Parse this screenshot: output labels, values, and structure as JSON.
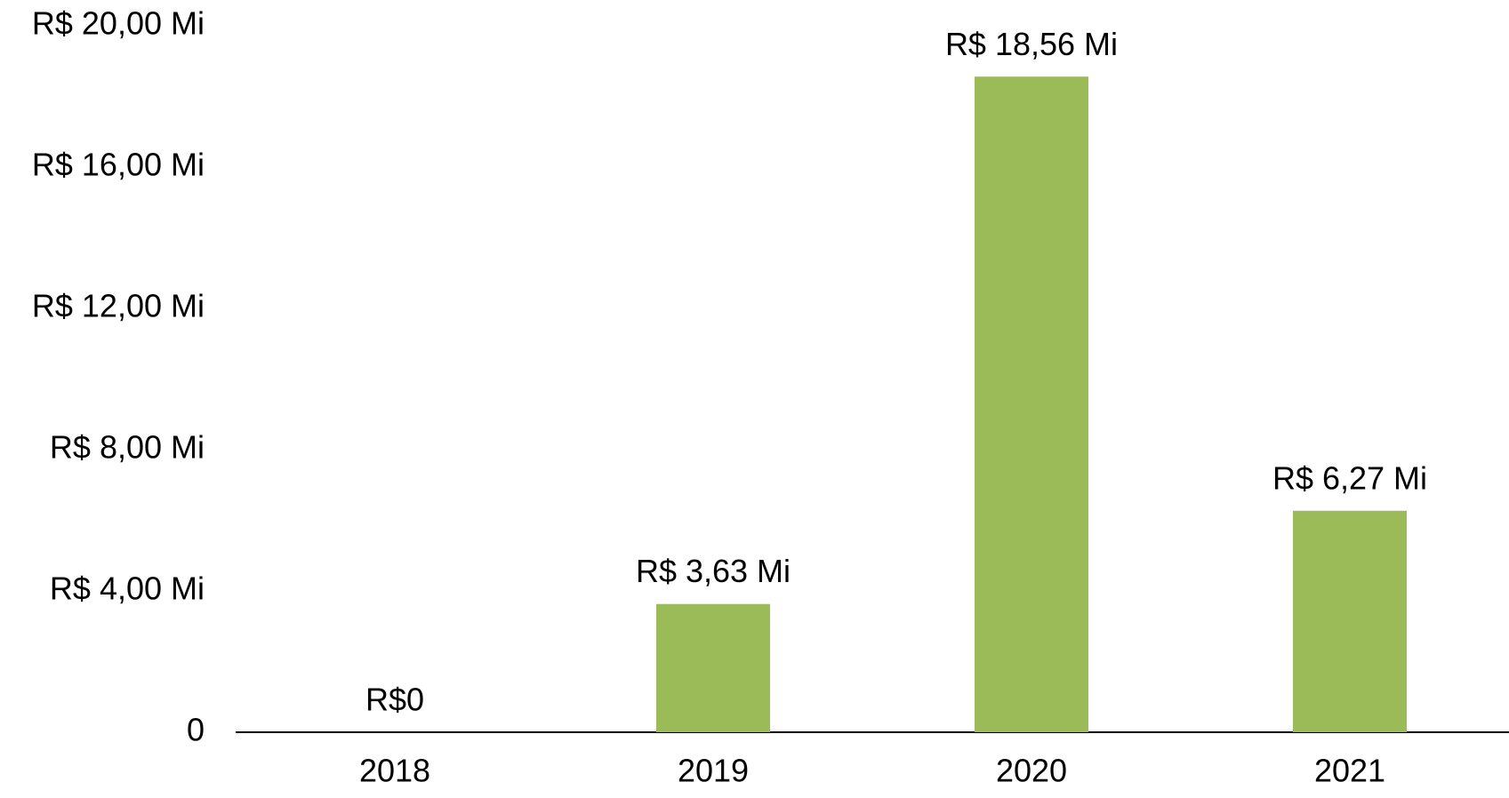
{
  "chart_data": {
    "type": "bar",
    "categories": [
      "2018",
      "2019",
      "2020",
      "2021"
    ],
    "values": [
      0,
      3.63,
      18.56,
      6.27
    ],
    "value_labels": [
      "R$0",
      "R$ 3,63 Mi",
      "R$ 18,56 Mi",
      "R$ 6,27 Mi"
    ],
    "color": "#9bbb59",
    "ylim": [
      0,
      20
    ],
    "yticks": [
      0,
      {
        "value": 4,
        "label": "R$ 4,00 Mi"
      },
      {
        "value": 8,
        "label": "R$ 8,00 Mi"
      },
      {
        "value": 12,
        "label": "R$ 12,00 Mi"
      },
      {
        "value": 16,
        "label": "R$ 16,00 Mi"
      },
      {
        "value": 20,
        "label": "R$ 20,00 Mi"
      }
    ],
    "grid": false
  }
}
